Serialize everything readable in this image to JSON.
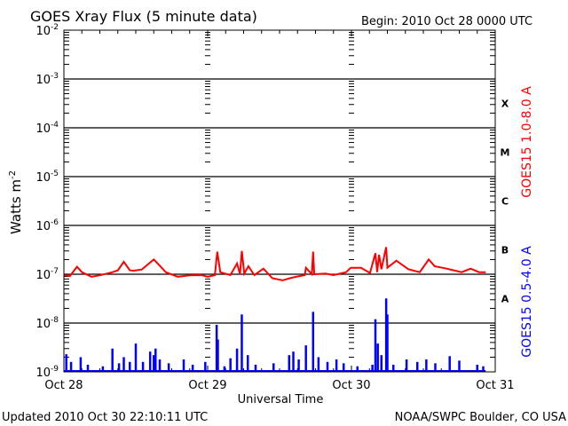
{
  "header": {
    "title": "GOES Xray Flux (5 minute data)",
    "begin": "Begin:  2010 Oct 28 0000 UTC"
  },
  "footer": {
    "updated": "Updated 2010 Oct 30 22:10:11 UTC",
    "credit": "NOAA/SWPC Boulder, CO USA"
  },
  "chart_data": {
    "type": "line",
    "title": "GOES Xray Flux (5 minute data)",
    "xlabel": "Universal Time",
    "ylabel": "Watts m-2",
    "ylabel_parts": {
      "base": "Watts m",
      "sup": "-2"
    },
    "y_scale": "log",
    "ylim": [
      1e-09,
      0.01
    ],
    "y_ticks": [
      {
        "base": "10",
        "exp": "-2",
        "value": 0.01
      },
      {
        "base": "10",
        "exp": "-3",
        "value": 0.001
      },
      {
        "base": "10",
        "exp": "-4",
        "value": 0.0001
      },
      {
        "base": "10",
        "exp": "-5",
        "value": 1e-05
      },
      {
        "base": "10",
        "exp": "-6",
        "value": 1e-06
      },
      {
        "base": "10",
        "exp": "-7",
        "value": 1e-07
      },
      {
        "base": "10",
        "exp": "-8",
        "value": 1e-08
      },
      {
        "base": "10",
        "exp": "-9",
        "value": 1e-09
      }
    ],
    "x_unit": "hours since 2010 Oct 28 00:00 UTC",
    "xlim": [
      0,
      72
    ],
    "x_ticks": [
      {
        "label": "Oct 28",
        "value": 0
      },
      {
        "label": "Oct 29",
        "value": 24
      },
      {
        "label": "Oct 30",
        "value": 48
      },
      {
        "label": "Oct 31",
        "value": 72
      }
    ],
    "flare_classes": [
      {
        "label": "X",
        "value": 0.000316
      },
      {
        "label": "M",
        "value": 3.16e-05
      },
      {
        "label": "C",
        "value": 3.16e-06
      },
      {
        "label": "B",
        "value": 3.16e-07
      },
      {
        "label": "A",
        "value": 3.16e-08
      }
    ],
    "grid": "horizontal lines at each decade 1e-3..1e-8",
    "series": [
      {
        "name": "GOES15 1.0-8.0 A",
        "color": "#ff0000",
        "x": [
          0,
          1,
          2.2,
          3,
          4.6,
          6,
          8.1,
          9,
          10,
          11,
          11.6,
          13,
          15,
          16,
          17,
          19,
          21,
          23,
          24,
          25.2,
          25.6,
          26.1,
          27.8,
          28.9,
          29.4,
          29.7,
          30.1,
          30.8,
          31.8,
          33.3,
          34.8,
          36.5,
          37.7,
          39,
          40.2,
          40.4,
          41.4,
          41.6,
          41.8,
          43.7,
          45,
          47.1,
          47.9,
          49.6,
          51.1,
          52,
          52.3,
          52.6,
          53,
          53.8,
          54,
          55.5,
          57.5,
          59.4,
          60.9,
          61.9,
          63.9,
          66.4,
          67.9,
          69.3,
          70.4
        ],
        "y": [
          9.6e-08,
          9.2e-08,
          1.42e-07,
          1.1e-07,
          8.9e-08,
          9.5e-08,
          1.1e-07,
          1.2e-07,
          1.8e-07,
          1.2e-07,
          1.18e-07,
          1.25e-07,
          2e-07,
          1.5e-07,
          1.1e-07,
          8.9e-08,
          9.5e-08,
          9.6e-08,
          8.9e-08,
          9.6e-08,
          2.9e-07,
          1.1e-07,
          9.6e-08,
          1.67e-07,
          1e-07,
          3e-07,
          1.03e-07,
          1.46e-07,
          9.6e-08,
          1.3e-07,
          8.3e-08,
          7.5e-08,
          8.3e-08,
          9e-08,
          9.6e-08,
          1.36e-07,
          1e-07,
          2.9e-07,
          1e-07,
          1.03e-07,
          9.6e-08,
          1.1e-07,
          1.36e-07,
          1.36e-07,
          1.06e-07,
          2.7e-07,
          1.1e-07,
          2.5e-07,
          1.27e-07,
          3.6e-07,
          1.36e-07,
          1.9e-07,
          1.27e-07,
          1.1e-07,
          2e-07,
          1.46e-07,
          1.3e-07,
          1.1e-07,
          1.3e-07,
          1.1e-07,
          1.1e-07
        ]
      },
      {
        "name": "GOES15 0.5-4.0 A",
        "color": "#0000ff",
        "baseline": 1e-09,
        "x": [
          0.4,
          1.2,
          2.8,
          4,
          6.5,
          8.1,
          9.2,
          10,
          11,
          12,
          13.2,
          14.4,
          15,
          15.3,
          16,
          17.5,
          20,
          21.5,
          23.6,
          25.5,
          25.7,
          26.8,
          27.8,
          28.9,
          29.7,
          30.7,
          32,
          35,
          37.6,
          38.3,
          39.2,
          40.4,
          41.6,
          42.5,
          44,
          45.5,
          46.7,
          49,
          51.5,
          52,
          52.4,
          53,
          53.8,
          54,
          55,
          57.2,
          59,
          60.5,
          62,
          64.4,
          66,
          69,
          70
        ],
        "y": [
          2.3e-09,
          1.6e-09,
          2e-09,
          1.4e-09,
          1.3e-09,
          3e-09,
          1.5e-09,
          2e-09,
          1.6e-09,
          3.8e-09,
          1.6e-09,
          2.6e-09,
          2.2e-09,
          3e-09,
          1.8e-09,
          1.5e-09,
          1.8e-09,
          1.4e-09,
          1.6e-09,
          9.2e-09,
          4.6e-09,
          1.3e-09,
          1.9e-09,
          3e-09,
          1.5e-08,
          2.2e-09,
          1.4e-09,
          1.5e-09,
          2.2e-09,
          2.6e-09,
          1.8e-09,
          3.5e-09,
          1.7e-08,
          2e-09,
          1.6e-09,
          1.8e-09,
          1.5e-09,
          1.3e-09,
          1.4e-09,
          1.2e-08,
          3.8e-09,
          2.2e-09,
          3.2e-08,
          1.5e-08,
          1.4e-09,
          1.8e-09,
          1.6e-09,
          1.8e-09,
          1.5e-09,
          2.1e-09,
          1.7e-09,
          1.4e-09,
          1.3e-09
        ]
      }
    ]
  }
}
